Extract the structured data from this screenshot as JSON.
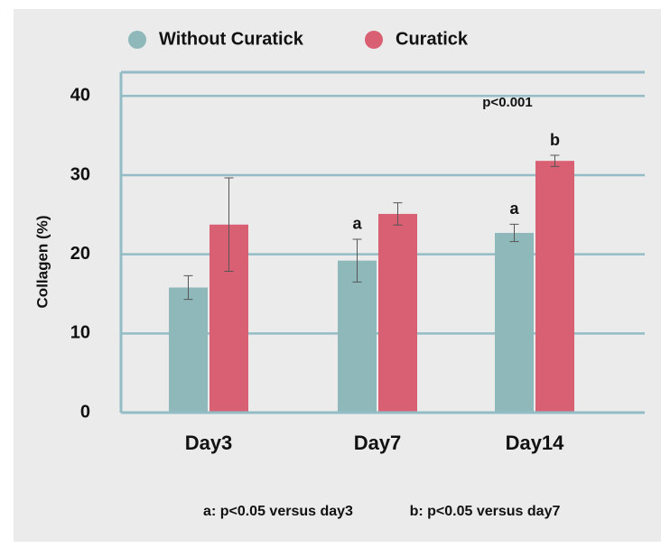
{
  "chart_data": {
    "type": "bar",
    "ylabel": "Collagen (%)",
    "categories": [
      "Day3",
      "Day7",
      "Day14"
    ],
    "series": [
      {
        "name": "Without Curatick",
        "color": "#8fb8bb",
        "values": [
          15.8,
          19.2,
          22.7
        ],
        "errors": [
          1.5,
          2.7,
          1.1
        ],
        "labels": [
          null,
          "a",
          "a"
        ]
      },
      {
        "name": "Curatick",
        "color": "#d95f73",
        "values": [
          23.75,
          25.1,
          31.8
        ],
        "errors": [
          5.9,
          1.4,
          0.7
        ],
        "labels": [
          null,
          null,
          "b"
        ]
      }
    ],
    "ylim": [
      0,
      43
    ],
    "yticks": [
      0,
      10,
      20,
      30,
      40
    ],
    "grid": true,
    "annotation": "p<0.001",
    "footnotes": [
      "a: p<0.05 versus day3",
      "b: p<0.05 versus day7"
    ]
  }
}
